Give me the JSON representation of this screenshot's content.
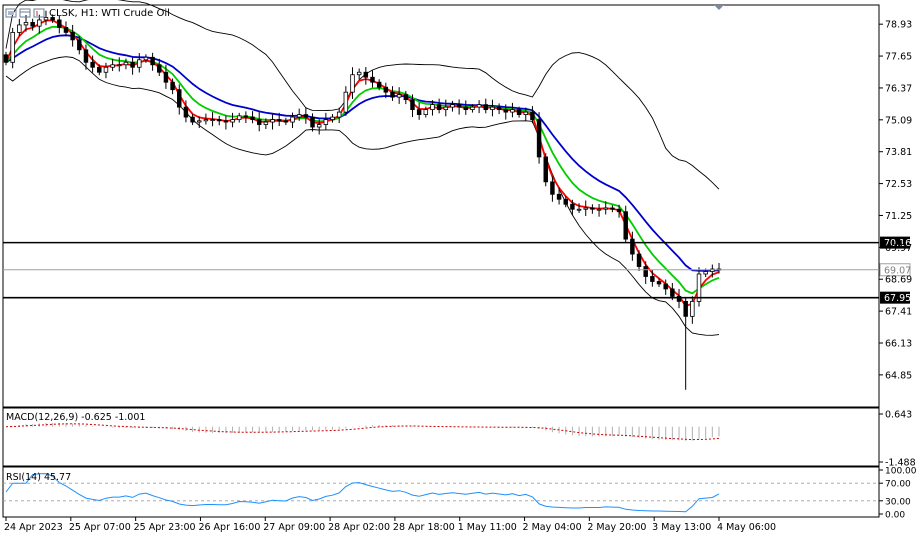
{
  "window": {
    "symbol_label": "CLSK, H1: WTI Crude Oil"
  },
  "theme": {
    "background": "#ffffff",
    "frame": "#000000",
    "candle": "#000000",
    "bollinger": "#000000",
    "ma_fast": "#ff0000",
    "ma_mid": "#00cc00",
    "ma_slow": "#0000cc",
    "price_line": "#a0a0a0",
    "level": "#000000",
    "macd_hist": "#b0b0b0",
    "macd_signal": "#cc0000",
    "rsi_line": "#1e90ff",
    "rsi_levels": "#a0a0a0"
  },
  "chart_data": [
    {
      "type": "candlestick",
      "title": "CLSK, H1: WTI Crude Oil",
      "ylim": [
        63.56,
        79.7
      ],
      "yticks": [
        "78.93",
        "77.65",
        "76.37",
        "75.09",
        "73.81",
        "72.53",
        "71.25",
        "69.97",
        "68.69",
        "67.41",
        "66.13",
        "64.85"
      ],
      "x_labels": [
        "24 Apr 2023",
        "25 Apr 07:00",
        "25 Apr 23:00",
        "26 Apr 16:00",
        "27 Apr 09:00",
        "28 Apr 02:00",
        "28 Apr 18:00",
        "1 May 11:00",
        "2 May 04:00",
        "2 May 20:00",
        "3 May 13:00",
        "4 May 06:00"
      ],
      "levels": [
        {
          "value": 70.16,
          "label": "70.16"
        },
        {
          "value": 67.95,
          "label": "67.95"
        }
      ],
      "current_price": {
        "value": 69.07,
        "label": "69.07"
      },
      "indicators": [
        "Bollinger Bands",
        "MA fast (red)",
        "MA mid (green)",
        "MA slow (blue)"
      ],
      "closes": [
        77.4,
        78.6,
        78.9,
        79.0,
        78.85,
        79.1,
        79.2,
        79.1,
        78.8,
        78.6,
        78.3,
        77.9,
        77.4,
        77.2,
        77.0,
        77.2,
        77.3,
        77.3,
        77.4,
        77.2,
        77.5,
        77.6,
        77.3,
        77.0,
        76.6,
        76.3,
        75.6,
        75.2,
        75.0,
        75.05,
        75.1,
        75.1,
        75.05,
        75.0,
        75.1,
        75.25,
        75.2,
        75.1,
        74.9,
        75.0,
        75.1,
        75.05,
        75.0,
        75.2,
        75.3,
        75.2,
        74.8,
        74.9,
        75.1,
        75.2,
        75.4,
        76.2,
        76.9,
        77.0,
        76.8,
        76.6,
        76.4,
        76.2,
        76.0,
        76.1,
        75.9,
        75.5,
        75.3,
        75.5,
        75.7,
        75.5,
        75.6,
        75.7,
        75.6,
        75.5,
        75.6,
        75.7,
        75.5,
        75.6,
        75.5,
        75.4,
        75.5,
        75.3,
        75.4,
        75.1,
        73.6,
        72.6,
        72.1,
        71.9,
        71.7,
        71.5,
        71.5,
        71.55,
        71.5,
        71.5,
        71.55,
        71.5,
        71.4,
        70.3,
        69.7,
        69.2,
        68.8,
        68.6,
        68.5,
        68.3,
        68.0,
        67.8,
        67.2,
        67.8,
        68.9,
        69.0,
        69.1,
        69.07
      ]
    },
    {
      "type": "line",
      "title": "MACD(12,26,9) -0.625 -1.001",
      "ylim": [
        -1.488,
        0.643
      ],
      "yticks": [
        "0.643",
        "-1.488"
      ],
      "series": [
        {
          "name": "MACD",
          "style": "histogram"
        },
        {
          "name": "Signal",
          "style": "dotted"
        }
      ]
    },
    {
      "type": "line",
      "title": "RSI(14) 45.77",
      "ylim": [
        0,
        100
      ],
      "yticks": [
        "100.00",
        "70.00",
        "30.00",
        "0.00"
      ],
      "levels": [
        70,
        30
      ]
    }
  ]
}
